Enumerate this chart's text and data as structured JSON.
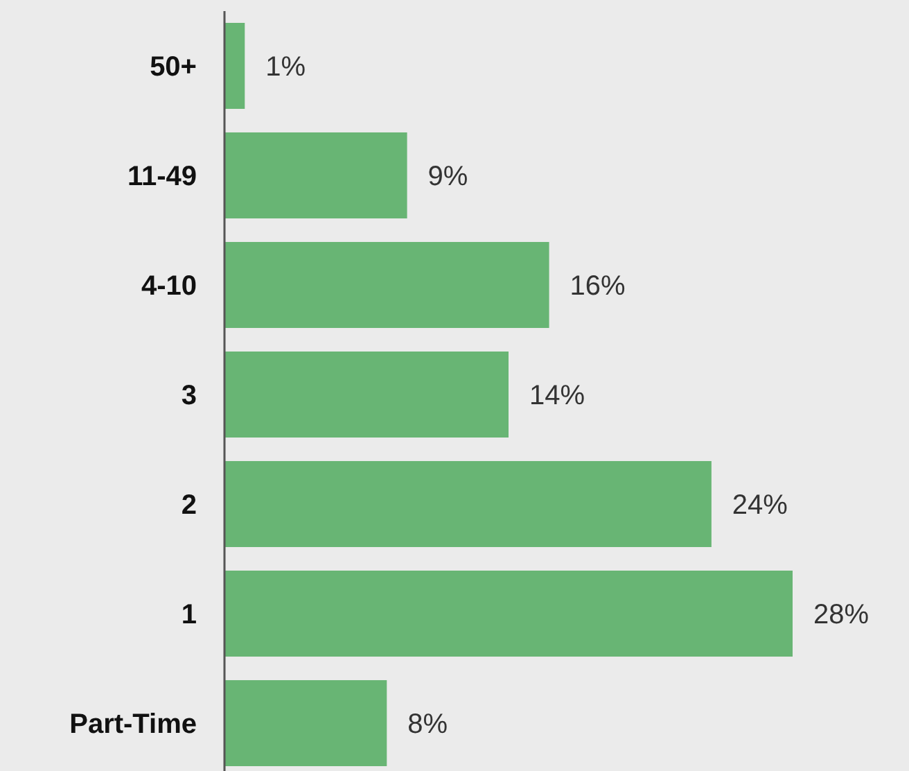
{
  "chart_data": {
    "type": "bar",
    "orientation": "horizontal",
    "categories": [
      "50+",
      "11-49",
      "4-10",
      "3",
      "2",
      "1",
      "Part-Time"
    ],
    "values": [
      1,
      9,
      16,
      14,
      24,
      28,
      8
    ],
    "value_labels": [
      "1%",
      "9%",
      "16%",
      "14%",
      "24%",
      "28%",
      "8%"
    ],
    "color": "#68b574"
  }
}
